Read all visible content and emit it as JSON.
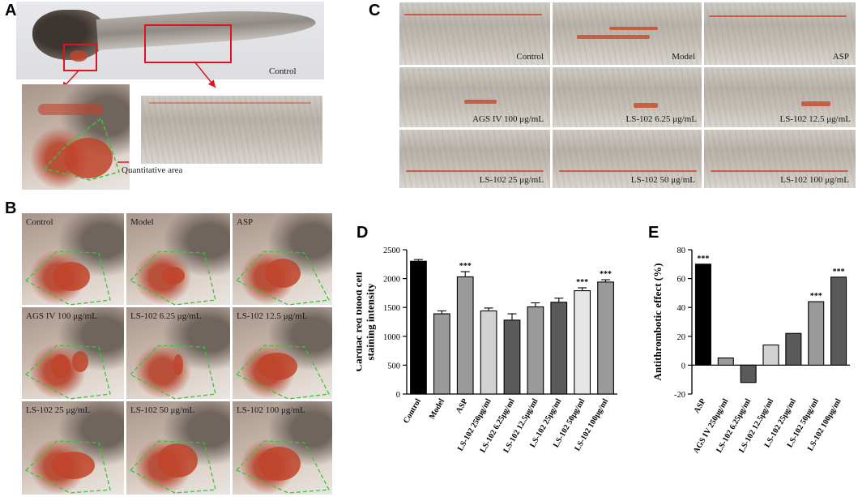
{
  "panels": {
    "A": {
      "letter": "A",
      "control_label": "Control",
      "quant_label": "Quantitative area"
    },
    "B": {
      "letter": "B",
      "labels": [
        "Control",
        "Model",
        "ASP",
        "AGS IV 100 μg/mL",
        "LS-102 6.25 μg/mL",
        "LS-102 12.5 μg/mL",
        "LS-102 25 μg/mL",
        "LS-102 50 μg/mL",
        "LS-102 100 μg/mL"
      ]
    },
    "C": {
      "letter": "C",
      "labels": [
        "Control",
        "Model",
        "ASP",
        "AGS IV 100 μg/mL",
        "LS-102 6.25 μg/mL",
        "LS-102 12.5 μg/mL",
        "LS-102 25 μg/mL",
        "LS-102 50 μg/mL",
        "LS-102 100 μg/mL"
      ]
    },
    "D": {
      "letter": "D"
    },
    "E": {
      "letter": "E"
    }
  },
  "colors": {
    "marker_red": "#e0141e",
    "dashed_green": "#39c53a",
    "black_bar": "#000000",
    "dark_gray_bar": "#5a5a5a",
    "mid_gray_bar": "#9a9a9a",
    "light_gray_bar": "#d2d2d2"
  },
  "chart_data": [
    {
      "panel": "D",
      "type": "bar",
      "ylabel": "Cardiac red blood cell staining intensity",
      "ylabel_lines": [
        "Cardiac red blood cell",
        "staining intensity"
      ],
      "ylim": [
        0,
        2500
      ],
      "yticks": [
        0,
        500,
        1000,
        1500,
        2000,
        2500
      ],
      "categories": [
        "Control",
        "Model",
        "ASP",
        "LS-102 250μg/ml",
        "LS-102 6.25μg/ml",
        "LS-102 12.5μg/ml",
        "LS-102 25μg/ml",
        "LS-102 50μg/ml",
        "LS-102 100μg/ml"
      ],
      "values": [
        2300,
        1390,
        2030,
        1440,
        1280,
        1510,
        1590,
        1790,
        1940
      ],
      "errors": [
        30,
        50,
        90,
        50,
        110,
        70,
        70,
        50,
        40
      ],
      "significance": [
        "",
        "",
        "***",
        "",
        "",
        "",
        "",
        "***",
        "***"
      ],
      "bar_colors": [
        "#000000",
        "#9a9a9a",
        "#9a9a9a",
        "#d2d2d2",
        "#5a5a5a",
        "#9a9a9a",
        "#5a5a5a",
        "#e6e6e6",
        "#9a9a9a"
      ],
      "grid": false
    },
    {
      "panel": "E",
      "type": "bar",
      "ylabel": "Antithrombotic effect (%)",
      "ylim": [
        -20,
        80
      ],
      "yticks": [
        -20,
        0,
        20,
        40,
        60,
        80
      ],
      "categories": [
        "ASP",
        "AGS IV 250μg/ml",
        "LS-102 6.25μg/ml",
        "LS-102 12.5μg/ml",
        "LS-102 25μg/ml",
        "LS-102 50μg/ml",
        "LS-102 100μg/ml"
      ],
      "values": [
        70,
        5,
        -12,
        14,
        22,
        44,
        61
      ],
      "significance": [
        "***",
        "",
        "",
        "",
        "",
        "***",
        "***"
      ],
      "bar_colors": [
        "#000000",
        "#9a9a9a",
        "#5a5a5a",
        "#d2d2d2",
        "#5a5a5a",
        "#9a9a9a",
        "#5a5a5a"
      ],
      "grid": false
    }
  ]
}
